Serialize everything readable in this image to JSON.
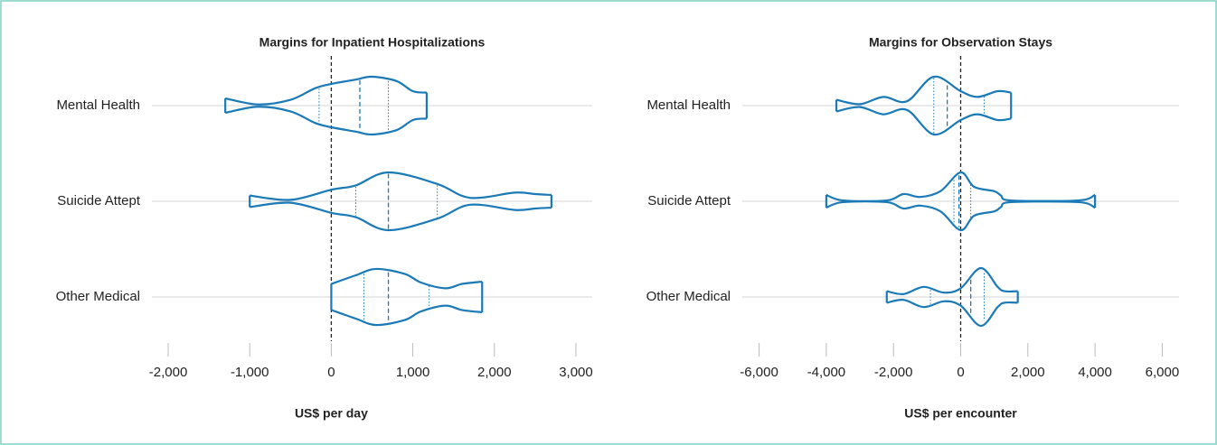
{
  "chart_data": [
    {
      "type": "violin",
      "title": "Margins for Inpatient Hospitalizations",
      "xlabel": "US$ per day",
      "color": "#1a7ab8",
      "zero_line": 0,
      "xlim": [
        -2200,
        3200
      ],
      "xticks": [
        {
          "value": -2000,
          "label": "-2,000"
        },
        {
          "value": -1000,
          "label": "-1,000"
        },
        0,
        {
          "value": 1000,
          "label": "1,000"
        },
        {
          "value": 2000,
          "label": "2,000"
        },
        {
          "value": 3000,
          "label": "3,000"
        }
      ],
      "categories": [
        "Mental Health",
        "Suicide Attept",
        "Other Medical"
      ],
      "violins": [
        {
          "x": [
            -1300,
            -900,
            -500,
            -200,
            0,
            300,
            500,
            800,
            1000,
            1170
          ],
          "density": [
            0.25,
            0.04,
            0.2,
            0.6,
            0.75,
            0.9,
            1.0,
            0.85,
            0.5,
            0.45
          ],
          "quartiles": [
            -150,
            350,
            700
          ]
        },
        {
          "x": [
            -1000,
            -500,
            0,
            300,
            700,
            1300,
            1700,
            2250,
            2500,
            2700
          ],
          "density": [
            0.2,
            0.05,
            0.4,
            0.55,
            1.0,
            0.6,
            0.12,
            0.3,
            0.25,
            0.22
          ],
          "quartiles": [
            300,
            700,
            1300
          ]
        },
        {
          "x": [
            0,
            300,
            550,
            900,
            1100,
            1400,
            1600,
            1850
          ],
          "density": [
            0.45,
            0.75,
            0.97,
            0.8,
            0.5,
            0.3,
            0.45,
            0.53
          ],
          "quartiles": [
            400,
            700,
            1200
          ]
        }
      ]
    },
    {
      "type": "violin",
      "title": "Margins for Observation Stays",
      "xlabel": "US$ per encounter",
      "color": "#1a7ab8",
      "zero_line": 0,
      "xlim": [
        -6500,
        6500
      ],
      "xticks": [
        {
          "value": -6000,
          "label": "-6,000"
        },
        {
          "value": -4000,
          "label": "-4,000"
        },
        {
          "value": -2000,
          "label": "-2,000"
        },
        0,
        {
          "value": 2000,
          "label": "2,000"
        },
        {
          "value": 4000,
          "label": "4,000"
        },
        {
          "value": 6000,
          "label": "6,000"
        }
      ],
      "categories": [
        "Mental Health",
        "Suicide Attept",
        "Other Medical"
      ],
      "violins": [
        {
          "x": [
            -3700,
            -3000,
            -2300,
            -1600,
            -800,
            0,
            500,
            1100,
            1500
          ],
          "density": [
            0.2,
            0.05,
            0.3,
            0.15,
            1.0,
            0.5,
            0.3,
            0.5,
            0.45
          ],
          "quartiles": [
            -800,
            -400,
            700
          ]
        },
        {
          "x": [
            -4000,
            -3500,
            -2200,
            -1700,
            -1200,
            -600,
            0,
            400,
            1000,
            1200,
            1500,
            3500,
            4000
          ],
          "density": [
            0.22,
            0.03,
            0.03,
            0.25,
            0.15,
            0.35,
            1.0,
            0.5,
            0.35,
            0.2,
            0.03,
            0.03,
            0.22
          ],
          "quartiles": [
            -200,
            -50,
            300
          ]
        },
        {
          "x": [
            -2200,
            -1700,
            -1100,
            -500,
            0,
            600,
            1100,
            1300,
            1700
          ],
          "density": [
            0.2,
            0.1,
            0.35,
            0.15,
            0.3,
            1.0,
            0.35,
            0.2,
            0.2
          ],
          "quartiles": [
            -900,
            300,
            700
          ]
        }
      ]
    }
  ]
}
